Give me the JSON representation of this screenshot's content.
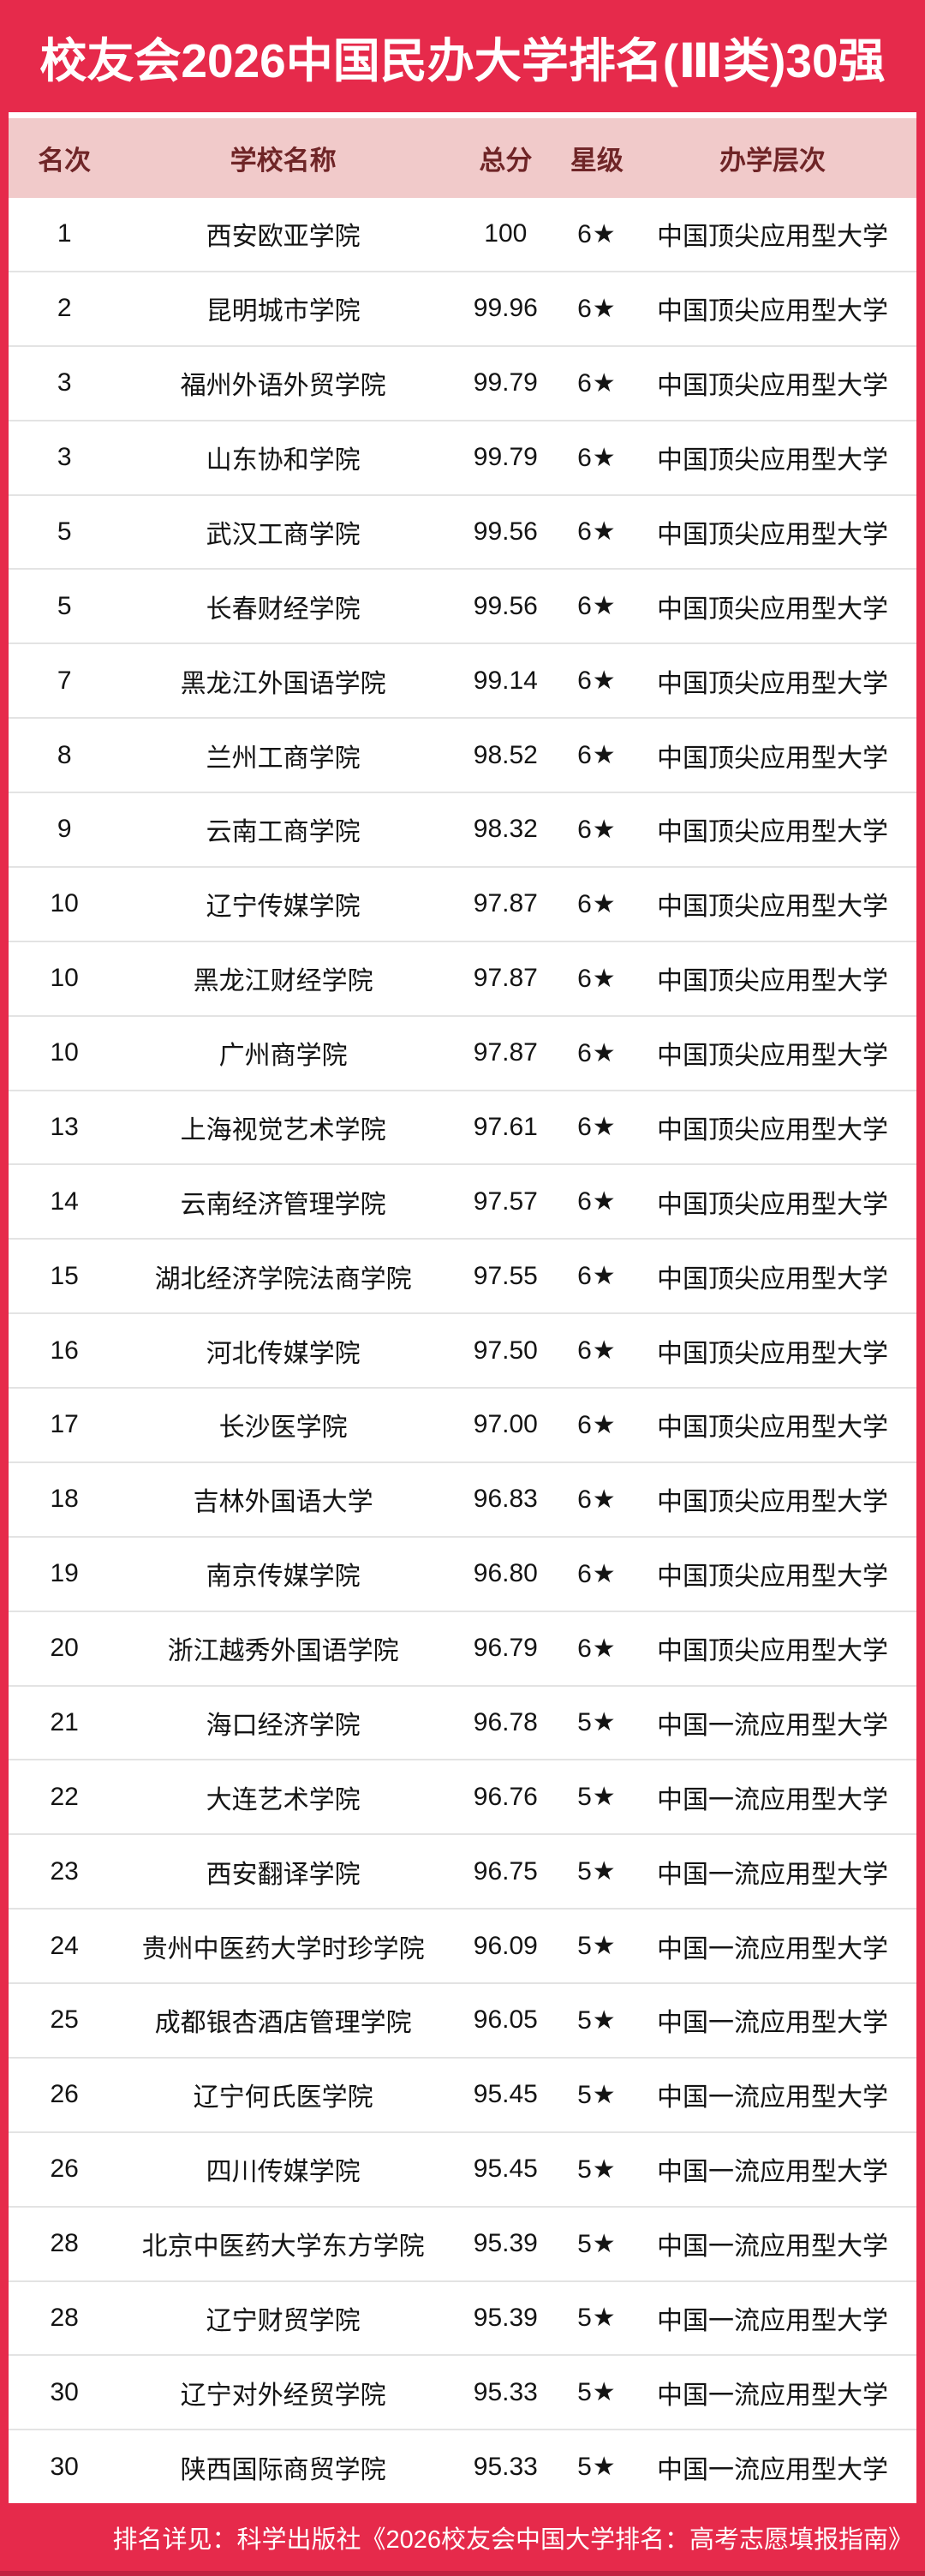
{
  "banner": {
    "title": "校友会2026中国民办大学排名(Ⅲ类)30强"
  },
  "table": {
    "columns": [
      {
        "key": "rank",
        "label": "名次"
      },
      {
        "key": "name",
        "label": "学校名称"
      },
      {
        "key": "score",
        "label": "总分"
      },
      {
        "key": "star",
        "label": "星级"
      },
      {
        "key": "level",
        "label": "办学层次"
      }
    ],
    "rows": [
      {
        "rank": "1",
        "name": "西安欧亚学院",
        "score": "100",
        "star": "6★",
        "level": "中国顶尖应用型大学"
      },
      {
        "rank": "2",
        "name": "昆明城市学院",
        "score": "99.96",
        "star": "6★",
        "level": "中国顶尖应用型大学"
      },
      {
        "rank": "3",
        "name": "福州外语外贸学院",
        "score": "99.79",
        "star": "6★",
        "level": "中国顶尖应用型大学"
      },
      {
        "rank": "3",
        "name": "山东协和学院",
        "score": "99.79",
        "star": "6★",
        "level": "中国顶尖应用型大学"
      },
      {
        "rank": "5",
        "name": "武汉工商学院",
        "score": "99.56",
        "star": "6★",
        "level": "中国顶尖应用型大学"
      },
      {
        "rank": "5",
        "name": "长春财经学院",
        "score": "99.56",
        "star": "6★",
        "level": "中国顶尖应用型大学"
      },
      {
        "rank": "7",
        "name": "黑龙江外国语学院",
        "score": "99.14",
        "star": "6★",
        "level": "中国顶尖应用型大学"
      },
      {
        "rank": "8",
        "name": "兰州工商学院",
        "score": "98.52",
        "star": "6★",
        "level": "中国顶尖应用型大学"
      },
      {
        "rank": "9",
        "name": "云南工商学院",
        "score": "98.32",
        "star": "6★",
        "level": "中国顶尖应用型大学"
      },
      {
        "rank": "10",
        "name": "辽宁传媒学院",
        "score": "97.87",
        "star": "6★",
        "level": "中国顶尖应用型大学"
      },
      {
        "rank": "10",
        "name": "黑龙江财经学院",
        "score": "97.87",
        "star": "6★",
        "level": "中国顶尖应用型大学"
      },
      {
        "rank": "10",
        "name": "广州商学院",
        "score": "97.87",
        "star": "6★",
        "level": "中国顶尖应用型大学"
      },
      {
        "rank": "13",
        "name": "上海视觉艺术学院",
        "score": "97.61",
        "star": "6★",
        "level": "中国顶尖应用型大学"
      },
      {
        "rank": "14",
        "name": "云南经济管理学院",
        "score": "97.57",
        "star": "6★",
        "level": "中国顶尖应用型大学"
      },
      {
        "rank": "15",
        "name": "湖北经济学院法商学院",
        "score": "97.55",
        "star": "6★",
        "level": "中国顶尖应用型大学"
      },
      {
        "rank": "16",
        "name": "河北传媒学院",
        "score": "97.50",
        "star": "6★",
        "level": "中国顶尖应用型大学"
      },
      {
        "rank": "17",
        "name": "长沙医学院",
        "score": "97.00",
        "star": "6★",
        "level": "中国顶尖应用型大学"
      },
      {
        "rank": "18",
        "name": "吉林外国语大学",
        "score": "96.83",
        "star": "6★",
        "level": "中国顶尖应用型大学"
      },
      {
        "rank": "19",
        "name": "南京传媒学院",
        "score": "96.80",
        "star": "6★",
        "level": "中国顶尖应用型大学"
      },
      {
        "rank": "20",
        "name": "浙江越秀外国语学院",
        "score": "96.79",
        "star": "6★",
        "level": "中国顶尖应用型大学"
      },
      {
        "rank": "21",
        "name": "海口经济学院",
        "score": "96.78",
        "star": "5★",
        "level": "中国一流应用型大学"
      },
      {
        "rank": "22",
        "name": "大连艺术学院",
        "score": "96.76",
        "star": "5★",
        "level": "中国一流应用型大学"
      },
      {
        "rank": "23",
        "name": "西安翻译学院",
        "score": "96.75",
        "star": "5★",
        "level": "中国一流应用型大学"
      },
      {
        "rank": "24",
        "name": "贵州中医药大学时珍学院",
        "score": "96.09",
        "star": "5★",
        "level": "中国一流应用型大学"
      },
      {
        "rank": "25",
        "name": "成都银杏酒店管理学院",
        "score": "96.05",
        "star": "5★",
        "level": "中国一流应用型大学"
      },
      {
        "rank": "26",
        "name": "辽宁何氏医学院",
        "score": "95.45",
        "star": "5★",
        "level": "中国一流应用型大学"
      },
      {
        "rank": "26",
        "name": "四川传媒学院",
        "score": "95.45",
        "star": "5★",
        "level": "中国一流应用型大学"
      },
      {
        "rank": "28",
        "name": "北京中医药大学东方学院",
        "score": "95.39",
        "star": "5★",
        "level": "中国一流应用型大学"
      },
      {
        "rank": "28",
        "name": "辽宁财贸学院",
        "score": "95.39",
        "star": "5★",
        "level": "中国一流应用型大学"
      },
      {
        "rank": "30",
        "name": "辽宁对外经贸学院",
        "score": "95.33",
        "star": "5★",
        "level": "中国一流应用型大学"
      },
      {
        "rank": "30",
        "name": "陕西国际商贸学院",
        "score": "95.33",
        "star": "5★",
        "level": "中国一流应用型大学"
      }
    ]
  },
  "footer": {
    "note": "排名详见：科学出版社《2026校友会中国大学排名：高考志愿填报指南》"
  },
  "colors": {
    "banner_red": "#e62a4b",
    "header_pink": "#f1caca",
    "header_text": "#6f2527",
    "row_text": "#141414",
    "divider": "#e3e3e3",
    "footer_text": "#ffffff",
    "footer_dark": "#c2213f"
  }
}
